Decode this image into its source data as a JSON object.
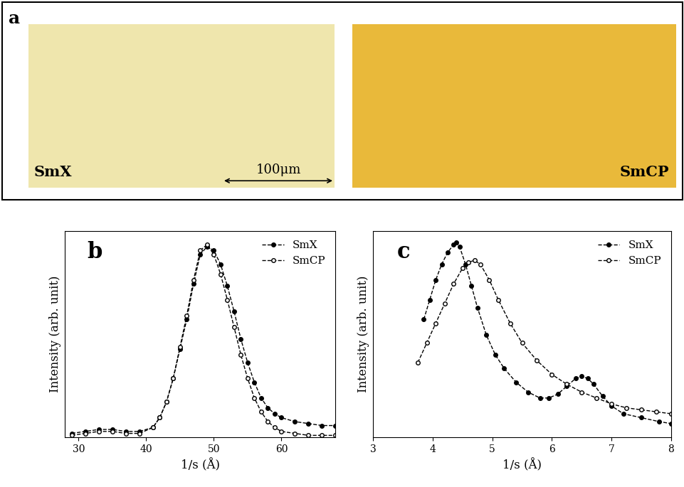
{
  "panel_a": {
    "label": "a",
    "images": [
      {
        "label": "SmX"
      },
      {
        "label": "SmCP"
      }
    ],
    "scale_bar": "100μm"
  },
  "chart_data": [
    {
      "type": "line",
      "title": "b",
      "x_label": "1/s (Å)",
      "y_label": "Intensity (arb. unit)",
      "xlim": [
        28,
        68
      ],
      "xticks": [
        30,
        40,
        50,
        60
      ],
      "ylim": [
        0,
        1.05
      ],
      "tick_labels": "x",
      "legend": "upper right",
      "series": [
        {
          "name": "SmX",
          "color": "#000000",
          "marker": "circle",
          "line_style": "dashed",
          "x": [
            29,
            31,
            33,
            35,
            37,
            39,
            41,
            42,
            43,
            44,
            45,
            46,
            47,
            48,
            49,
            50,
            51,
            52,
            53,
            54,
            55,
            56,
            57,
            58,
            59,
            60,
            62,
            64,
            66,
            68
          ],
          "values": [
            0.02,
            0.03,
            0.04,
            0.04,
            0.03,
            0.03,
            0.05,
            0.1,
            0.18,
            0.3,
            0.45,
            0.6,
            0.78,
            0.93,
            0.97,
            0.95,
            0.88,
            0.77,
            0.64,
            0.5,
            0.38,
            0.28,
            0.2,
            0.15,
            0.12,
            0.1,
            0.08,
            0.07,
            0.06,
            0.06
          ]
        },
        {
          "name": "SmCP",
          "color": "#000000",
          "marker": "open_circle",
          "line_style": "dashed",
          "x": [
            29,
            31,
            33,
            35,
            37,
            39,
            41,
            42,
            43,
            44,
            45,
            46,
            47,
            48,
            49,
            50,
            51,
            52,
            53,
            54,
            55,
            56,
            57,
            58,
            59,
            60,
            62,
            64,
            66,
            68
          ],
          "values": [
            0.01,
            0.02,
            0.03,
            0.03,
            0.02,
            0.02,
            0.05,
            0.1,
            0.18,
            0.3,
            0.46,
            0.62,
            0.8,
            0.95,
            0.98,
            0.93,
            0.83,
            0.7,
            0.56,
            0.42,
            0.3,
            0.2,
            0.13,
            0.08,
            0.05,
            0.03,
            0.02,
            0.01,
            0.01,
            0.01
          ]
        }
      ]
    },
    {
      "type": "line",
      "title": "c",
      "x_label": "1/s (Å)",
      "y_label": "Intensity (arb. unit)",
      "xlim": [
        3,
        8
      ],
      "xticks": [
        3,
        4,
        5,
        6,
        7,
        8
      ],
      "ylim": [
        0,
        1.05
      ],
      "tick_labels": "x",
      "legend": "upper right",
      "series": [
        {
          "name": "SmX",
          "color": "#000000",
          "marker": "circle",
          "line_style": "dashed",
          "x": [
            3.85,
            3.95,
            4.05,
            4.15,
            4.25,
            4.35,
            4.4,
            4.45,
            4.55,
            4.65,
            4.75,
            4.9,
            5.05,
            5.2,
            5.4,
            5.6,
            5.8,
            5.95,
            6.1,
            6.25,
            6.4,
            6.5,
            6.6,
            6.7,
            6.85,
            7.0,
            7.2,
            7.5,
            7.8,
            8.0
          ],
          "values": [
            0.6,
            0.7,
            0.8,
            0.88,
            0.94,
            0.98,
            0.99,
            0.97,
            0.88,
            0.77,
            0.66,
            0.52,
            0.42,
            0.35,
            0.28,
            0.23,
            0.2,
            0.2,
            0.22,
            0.26,
            0.3,
            0.31,
            0.3,
            0.27,
            0.21,
            0.16,
            0.12,
            0.1,
            0.08,
            0.07
          ]
        },
        {
          "name": "SmCP",
          "color": "#000000",
          "marker": "open_circle",
          "line_style": "dashed",
          "x": [
            3.75,
            3.9,
            4.05,
            4.2,
            4.35,
            4.5,
            4.6,
            4.7,
            4.8,
            4.95,
            5.1,
            5.3,
            5.5,
            5.75,
            6.0,
            6.25,
            6.5,
            6.75,
            7.0,
            7.25,
            7.5,
            7.75,
            8.0
          ],
          "values": [
            0.38,
            0.48,
            0.58,
            0.68,
            0.78,
            0.86,
            0.89,
            0.9,
            0.88,
            0.8,
            0.7,
            0.58,
            0.48,
            0.39,
            0.32,
            0.27,
            0.23,
            0.2,
            0.17,
            0.15,
            0.14,
            0.13,
            0.12
          ]
        }
      ]
    }
  ]
}
